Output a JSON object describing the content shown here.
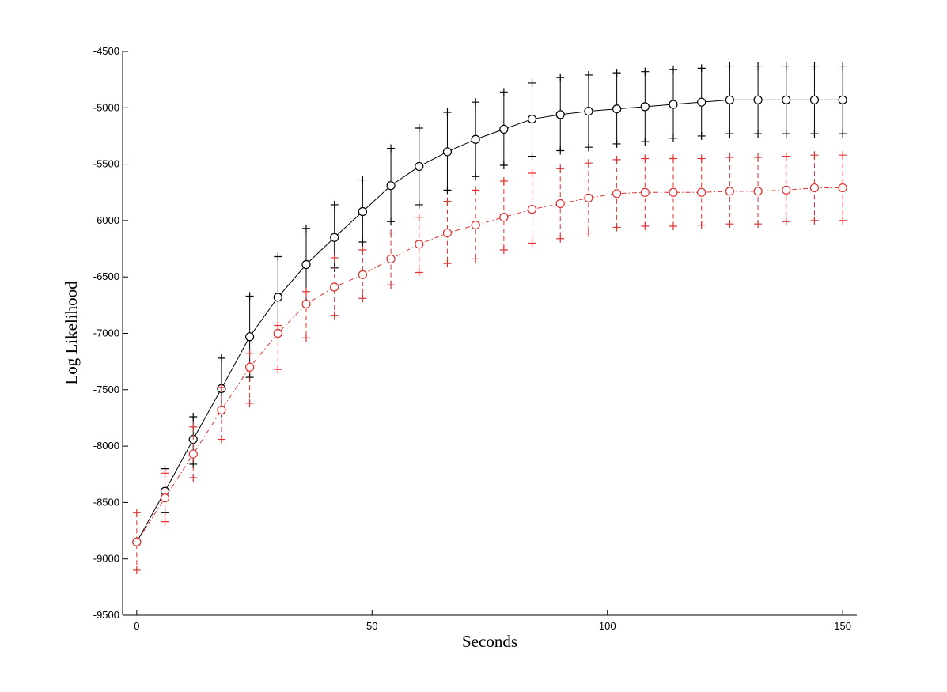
{
  "chart_data": {
    "type": "line",
    "title": "",
    "xlabel": "Seconds",
    "ylabel": "Log Likelihood",
    "xlim": [
      -3,
      153
    ],
    "ylim": [
      -9500,
      -4500
    ],
    "xticks": [
      0,
      50,
      100,
      150
    ],
    "yticks": [
      -9500,
      -9000,
      -8500,
      -8000,
      -7500,
      -7000,
      -6500,
      -6000,
      -5500,
      -5000,
      -4500
    ],
    "grid": false,
    "x": [
      0,
      6,
      12,
      18,
      24,
      30,
      36,
      42,
      48,
      54,
      60,
      66,
      72,
      78,
      84,
      90,
      96,
      102,
      108,
      114,
      120,
      126,
      132,
      138,
      144,
      150
    ],
    "series": [
      {
        "color": "#000000",
        "line_style": "solid",
        "marker": "circle",
        "mean": [
          -8850,
          -8400,
          -7940,
          -7490,
          -7030,
          -6680,
          -6390,
          -6150,
          -5920,
          -5690,
          -5520,
          -5390,
          -5280,
          -5190,
          -5100,
          -5060,
          -5030,
          -5010,
          -4990,
          -4970,
          -4950,
          -4930,
          -4930,
          -4930,
          -4930,
          -4930
        ],
        "upper": [
          -8850,
          -8200,
          -7740,
          -7220,
          -6670,
          -6320,
          -6070,
          -5860,
          -5640,
          -5360,
          -5180,
          -5040,
          -4950,
          -4860,
          -4780,
          -4730,
          -4710,
          -4690,
          -4680,
          -4660,
          -4650,
          -4630,
          -4630,
          -4630,
          -4630,
          -4630
        ],
        "lower": [
          -8850,
          -8590,
          -8160,
          -7710,
          -7390,
          -7020,
          -6730,
          -6420,
          -6190,
          -6010,
          -5860,
          -5730,
          -5610,
          -5510,
          -5430,
          -5380,
          -5350,
          -5320,
          -5300,
          -5270,
          -5250,
          -5230,
          -5230,
          -5230,
          -5230,
          -5230
        ]
      },
      {
        "color": "#e03030",
        "line_style": "dash-dot",
        "marker": "circle",
        "mean": [
          -8850,
          -8460,
          -8070,
          -7680,
          -7300,
          -7000,
          -6740,
          -6590,
          -6480,
          -6340,
          -6210,
          -6110,
          -6040,
          -5970,
          -5900,
          -5850,
          -5800,
          -5760,
          -5750,
          -5750,
          -5750,
          -5740,
          -5740,
          -5730,
          -5710,
          -5710
        ],
        "upper": [
          -8590,
          -8240,
          -7830,
          -7480,
          -7180,
          -6930,
          -6630,
          -6330,
          -6260,
          -6110,
          -5970,
          -5830,
          -5730,
          -5650,
          -5580,
          -5540,
          -5490,
          -5460,
          -5450,
          -5450,
          -5450,
          -5440,
          -5440,
          -5430,
          -5420,
          -5420
        ],
        "lower": [
          -9100,
          -8670,
          -8280,
          -7940,
          -7620,
          -7320,
          -7040,
          -6840,
          -6690,
          -6570,
          -6460,
          -6380,
          -6340,
          -6260,
          -6200,
          -6160,
          -6110,
          -6060,
          -6050,
          -6050,
          -6040,
          -6030,
          -6030,
          -6010,
          -6000,
          -6000
        ]
      }
    ]
  }
}
